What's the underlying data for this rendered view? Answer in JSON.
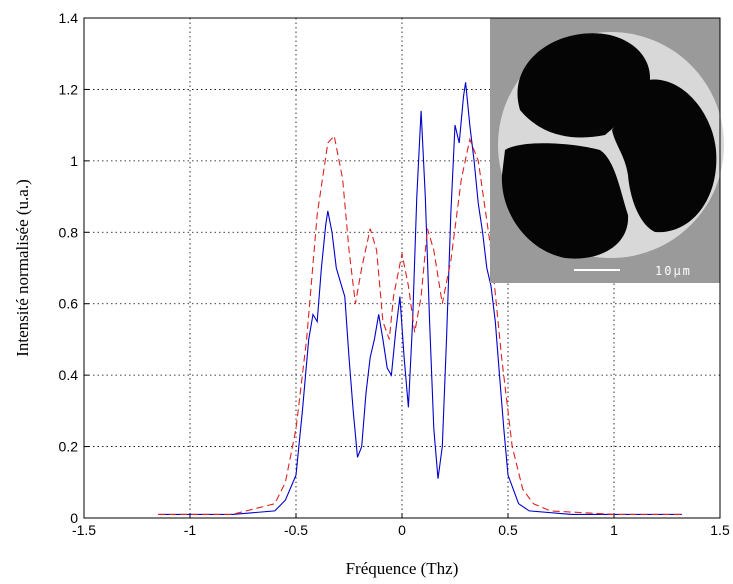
{
  "chart_data": {
    "type": "line",
    "xlabel": "Fréquence (Thz)",
    "ylabel": "Intensité normalisée (u.a.)",
    "xlim": [
      -1.5,
      1.5
    ],
    "xticks": [
      -1.5,
      -1,
      -0.5,
      0,
      0.5,
      1,
      1.5
    ],
    "ylim": [
      0,
      1.4
    ],
    "yticks": [
      0,
      0.2,
      0.4,
      0.6,
      0.8,
      1,
      1.2,
      1.4
    ],
    "grid": true,
    "annotations": [
      "10µm"
    ],
    "series": [
      {
        "color": "#0000cc",
        "dash": false,
        "x": [
          -1.15,
          -1.0,
          -0.8,
          -0.6,
          -0.55,
          -0.5,
          -0.47,
          -0.44,
          -0.42,
          -0.4,
          -0.38,
          -0.36,
          -0.35,
          -0.33,
          -0.31,
          -0.29,
          -0.27,
          -0.25,
          -0.23,
          -0.21,
          -0.19,
          -0.17,
          -0.15,
          -0.13,
          -0.11,
          -0.09,
          -0.07,
          -0.05,
          -0.03,
          -0.01,
          0.01,
          0.03,
          0.05,
          0.07,
          0.09,
          0.11,
          0.13,
          0.15,
          0.17,
          0.19,
          0.21,
          0.23,
          0.25,
          0.27,
          0.29,
          0.3,
          0.32,
          0.34,
          0.36,
          0.38,
          0.4,
          0.42,
          0.44,
          0.46,
          0.48,
          0.5,
          0.55,
          0.6,
          0.8,
          1.0,
          1.2,
          1.32
        ],
        "values": [
          0.01,
          0.01,
          0.01,
          0.02,
          0.05,
          0.12,
          0.3,
          0.5,
          0.57,
          0.55,
          0.7,
          0.82,
          0.86,
          0.8,
          0.7,
          0.66,
          0.62,
          0.45,
          0.3,
          0.17,
          0.2,
          0.35,
          0.45,
          0.5,
          0.57,
          0.5,
          0.42,
          0.4,
          0.52,
          0.62,
          0.45,
          0.31,
          0.55,
          0.9,
          1.14,
          0.9,
          0.55,
          0.25,
          0.11,
          0.2,
          0.5,
          0.85,
          1.1,
          1.05,
          1.18,
          1.22,
          1.1,
          1.0,
          0.88,
          0.8,
          0.7,
          0.65,
          0.55,
          0.4,
          0.25,
          0.12,
          0.04,
          0.02,
          0.01,
          0.01,
          0.01,
          0.01
        ]
      },
      {
        "color": "#dd2222",
        "dash": true,
        "x": [
          -1.15,
          -0.8,
          -0.6,
          -0.55,
          -0.5,
          -0.45,
          -0.4,
          -0.35,
          -0.32,
          -0.28,
          -0.25,
          -0.22,
          -0.19,
          -0.15,
          -0.12,
          -0.09,
          -0.06,
          -0.04,
          0,
          0.03,
          0.06,
          0.09,
          0.12,
          0.15,
          0.19,
          0.23,
          0.28,
          0.32,
          0.36,
          0.42,
          0.47,
          0.52,
          0.57,
          0.62,
          0.7,
          1.0,
          1.32
        ],
        "values": [
          0.01,
          0.01,
          0.04,
          0.1,
          0.25,
          0.5,
          0.85,
          1.05,
          1.07,
          0.95,
          0.75,
          0.6,
          0.7,
          0.81,
          0.75,
          0.55,
          0.5,
          0.62,
          0.74,
          0.65,
          0.52,
          0.62,
          0.81,
          0.75,
          0.6,
          0.72,
          0.95,
          1.06,
          1.0,
          0.75,
          0.45,
          0.2,
          0.08,
          0.04,
          0.02,
          0.01,
          0.01
        ]
      }
    ]
  }
}
